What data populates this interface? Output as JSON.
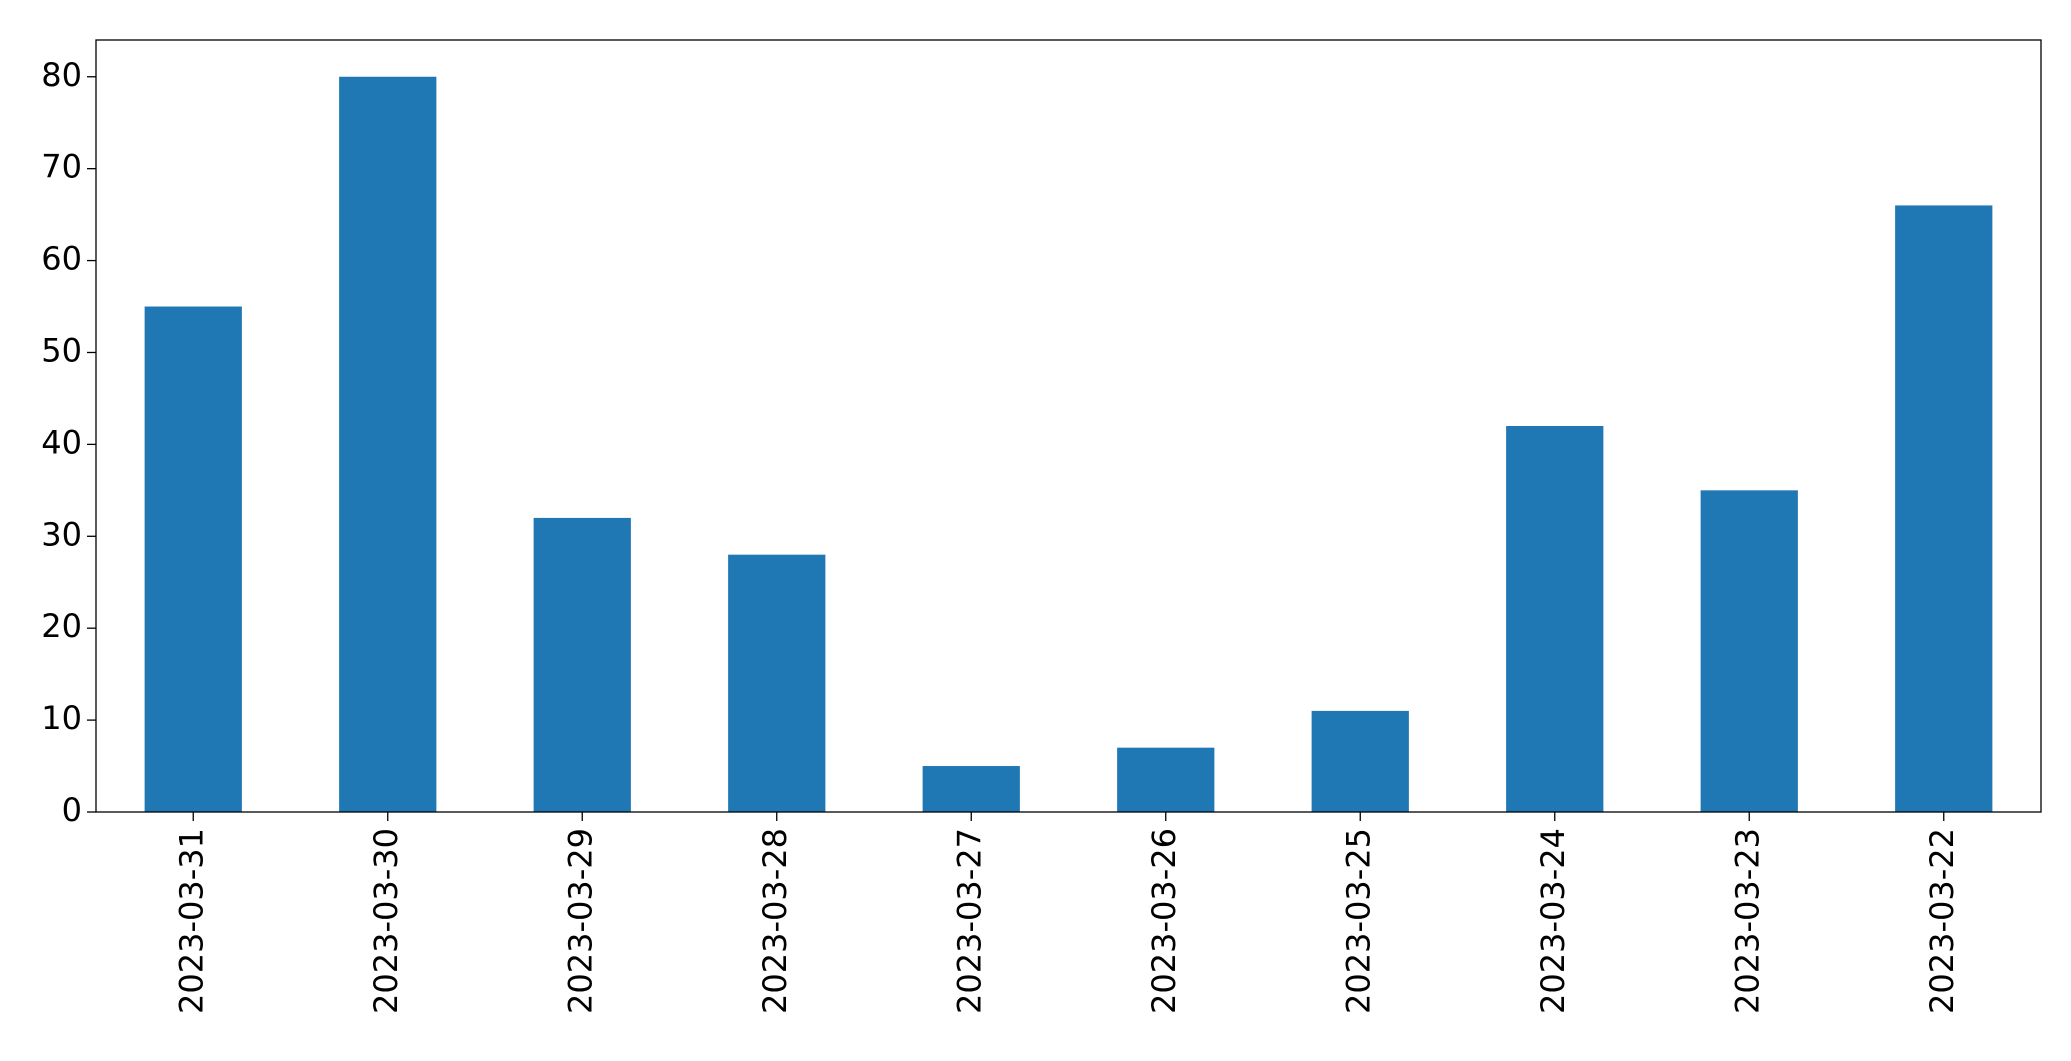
{
  "chart_data": {
    "type": "bar",
    "categories": [
      "2023-03-31",
      "2023-03-30",
      "2023-03-29",
      "2023-03-28",
      "2023-03-27",
      "2023-03-26",
      "2023-03-25",
      "2023-03-24",
      "2023-03-23",
      "2023-03-22"
    ],
    "values": [
      55,
      80,
      32,
      28,
      5,
      7,
      11,
      42,
      35,
      66
    ],
    "color": "#1f77b4",
    "ylim": [
      0,
      84
    ],
    "yticks": [
      0,
      10,
      20,
      30,
      40,
      50,
      60,
      70,
      80
    ],
    "grid": false
  }
}
